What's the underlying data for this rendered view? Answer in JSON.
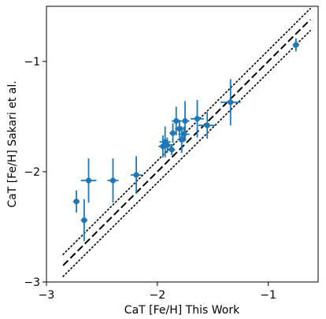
{
  "chart_data": {
    "type": "scatter",
    "xlabel": "CaT [Fe/H] This Work",
    "ylabel": "CaT [Fe/H] Sakari et al.",
    "xlim": [
      -3.0,
      -0.55
    ],
    "ylim": [
      -3.0,
      -0.5
    ],
    "xticks": [
      -3,
      -2,
      -1
    ],
    "yticks": [
      -3,
      -2,
      -1
    ],
    "xtick_labels": [
      "−3",
      "−2",
      "−1"
    ],
    "ytick_labels": [
      "−3",
      "−2",
      "−1"
    ],
    "grid": false,
    "legend": "none",
    "colors": {
      "points": "#1f77b4",
      "lines": "#000000"
    },
    "reference_lines": [
      {
        "style": "dashed",
        "offset": 0.0
      },
      {
        "style": "dotted",
        "offset": 0.1
      },
      {
        "style": "dotted",
        "offset": -0.1
      }
    ],
    "reference_x_range": [
      -2.85,
      -0.62
    ],
    "points": [
      {
        "x": -2.73,
        "y": -2.27,
        "xerr": 0.03,
        "yerr": 0.1
      },
      {
        "x": -2.66,
        "y": -2.44,
        "xerr": 0.03,
        "yerr": 0.19
      },
      {
        "x": -2.62,
        "y": -2.08,
        "xerr": 0.07,
        "yerr": 0.2
      },
      {
        "x": -2.4,
        "y": -2.08,
        "xerr": 0.05,
        "yerr": 0.2
      },
      {
        "x": -2.19,
        "y": -2.03,
        "xerr": 0.05,
        "yerr": 0.17
      },
      {
        "x": -1.95,
        "y": -1.77,
        "xerr": 0.04,
        "yerr": 0.1
      },
      {
        "x": -1.93,
        "y": -1.73,
        "xerr": 0.05,
        "yerr": 0.14
      },
      {
        "x": -1.91,
        "y": -1.76,
        "xerr": 0.05,
        "yerr": 0.07
      },
      {
        "x": -1.87,
        "y": -1.8,
        "xerr": 0.03,
        "yerr": 0.05
      },
      {
        "x": -1.86,
        "y": -1.65,
        "xerr": 0.03,
        "yerr": 0.09
      },
      {
        "x": -1.83,
        "y": -1.54,
        "xerr": 0.04,
        "yerr": 0.13
      },
      {
        "x": -1.8,
        "y": -1.61,
        "xerr": 0.04,
        "yerr": 0.08
      },
      {
        "x": -1.78,
        "y": -1.71,
        "xerr": 0.04,
        "yerr": 0.12
      },
      {
        "x": -1.76,
        "y": -1.66,
        "xerr": 0.05,
        "yerr": 0.07
      },
      {
        "x": -1.75,
        "y": -1.54,
        "xerr": 0.04,
        "yerr": 0.18
      },
      {
        "x": -1.64,
        "y": -1.52,
        "xerr": 0.06,
        "yerr": 0.17
      },
      {
        "x": -1.55,
        "y": -1.58,
        "xerr": 0.08,
        "yerr": 0.12
      },
      {
        "x": -1.34,
        "y": -1.37,
        "xerr": 0.09,
        "yerr": 0.21
      },
      {
        "x": -0.75,
        "y": -0.85,
        "xerr": 0.03,
        "yerr": 0.06
      }
    ]
  }
}
